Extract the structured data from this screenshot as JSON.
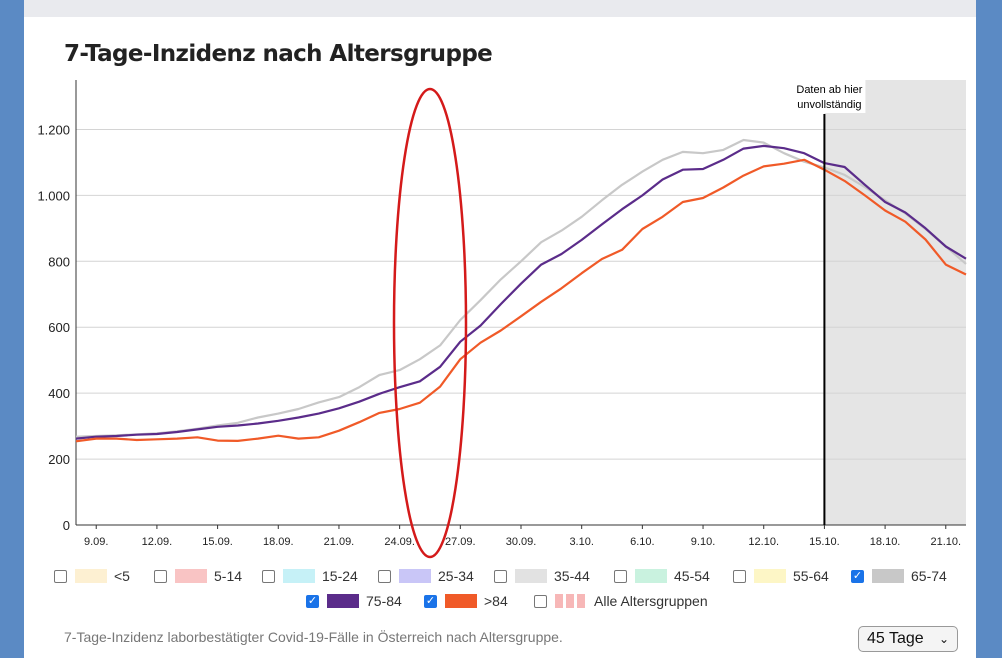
{
  "title": "7-Tage-Inzidenz nach Altersgruppe",
  "footer": "7-Tage-Inzidenz laborbestätigter Covid-19-Fälle in Österreich nach Altersgruppe.",
  "select": {
    "value": "45 Tage"
  },
  "annotation": {
    "line1": "Daten ab hier",
    "line2": "unvollständig"
  },
  "legend": [
    {
      "label": "<5",
      "color": "#fdf0d2",
      "checked": false
    },
    {
      "label": "5-14",
      "color": "#f9c4c4",
      "checked": false
    },
    {
      "label": "15-24",
      "color": "#c6f1f7",
      "checked": false
    },
    {
      "label": "25-34",
      "color": "#c9c6f7",
      "checked": false
    },
    {
      "label": "35-44",
      "color": "#e2e2e2",
      "checked": false
    },
    {
      "label": "45-54",
      "color": "#c9f2df",
      "checked": false
    },
    {
      "label": "55-64",
      "color": "#fdf6c6",
      "checked": false
    },
    {
      "label": "65-74",
      "color": "#c8c8c8",
      "checked": true
    },
    {
      "label": "75-84",
      "color": "#5b2c8a",
      "checked": true
    },
    {
      "label": ">84",
      "color": "#f05a28",
      "checked": true
    },
    {
      "label": "Alle Altersgruppen",
      "color": "#f7b7b7",
      "checked": false
    }
  ],
  "chart_data": {
    "type": "line",
    "x": [
      "8.09.",
      "9.09.",
      "10.09.",
      "11.09.",
      "12.09.",
      "13.09.",
      "14.09.",
      "15.09.",
      "16.09.",
      "17.09.",
      "18.09.",
      "19.09.",
      "20.09.",
      "21.09.",
      "22.09.",
      "23.09.",
      "24.09.",
      "25.09.",
      "26.09.",
      "27.09.",
      "28.09.",
      "29.09.",
      "30.09.",
      "1.10.",
      "2.10.",
      "3.10.",
      "4.10.",
      "5.10.",
      "6.10.",
      "7.10.",
      "8.10.",
      "9.10.",
      "10.10.",
      "11.10.",
      "12.10.",
      "13.10.",
      "14.10.",
      "15.10.",
      "16.10.",
      "17.10.",
      "18.10.",
      "19.10.",
      "20.10.",
      "21.10.",
      "22.10."
    ],
    "xticks": [
      "9.09.",
      "12.09.",
      "15.09.",
      "18.09.",
      "21.09.",
      "24.09.",
      "27.09.",
      "30.09.",
      "3.10.",
      "6.10.",
      "9.10.",
      "12.10.",
      "15.10.",
      "18.10.",
      "21.10."
    ],
    "ylim": [
      0,
      1350
    ],
    "yticks": [
      0,
      200,
      400,
      600,
      800,
      1000,
      1200
    ],
    "ytick_labels": [
      "0",
      "200",
      "400",
      "600",
      "800",
      "1.000",
      "1.200"
    ],
    "incomplete_from": "15.10.",
    "series": [
      {
        "name": "65-74",
        "color": "#c8c8c8",
        "values": [
          268,
          270,
          272,
          275,
          278,
          284,
          292,
          302,
          310,
          326,
          338,
          352,
          372,
          388,
          418,
          455,
          470,
          503,
          545,
          622,
          682,
          745,
          800,
          858,
          893,
          935,
          985,
          1032,
          1072,
          1108,
          1132,
          1128,
          1138,
          1168,
          1160,
          1128,
          1102,
          1085,
          1062,
          1025,
          985,
          945,
          898,
          845,
          792
        ]
      },
      {
        "name": "75-84",
        "color": "#5b2c8a",
        "values": [
          262,
          268,
          270,
          274,
          276,
          282,
          290,
          298,
          302,
          308,
          316,
          326,
          338,
          354,
          374,
          398,
          418,
          436,
          480,
          556,
          605,
          670,
          732,
          790,
          822,
          865,
          912,
          958,
          1000,
          1048,
          1078,
          1080,
          1108,
          1142,
          1150,
          1143,
          1128,
          1098,
          1086,
          1032,
          980,
          948,
          900,
          845,
          808
        ]
      },
      {
        "name": ">84",
        "color": "#f05a28",
        "values": [
          254,
          262,
          262,
          258,
          260,
          262,
          266,
          256,
          255,
          262,
          271,
          262,
          266,
          286,
          312,
          340,
          352,
          371,
          420,
          503,
          553,
          590,
          633,
          677,
          718,
          764,
          807,
          835,
          898,
          935,
          980,
          992,
          1024,
          1060,
          1088,
          1096,
          1108,
          1078,
          1044,
          1000,
          954,
          920,
          866,
          790,
          760
        ]
      }
    ]
  }
}
